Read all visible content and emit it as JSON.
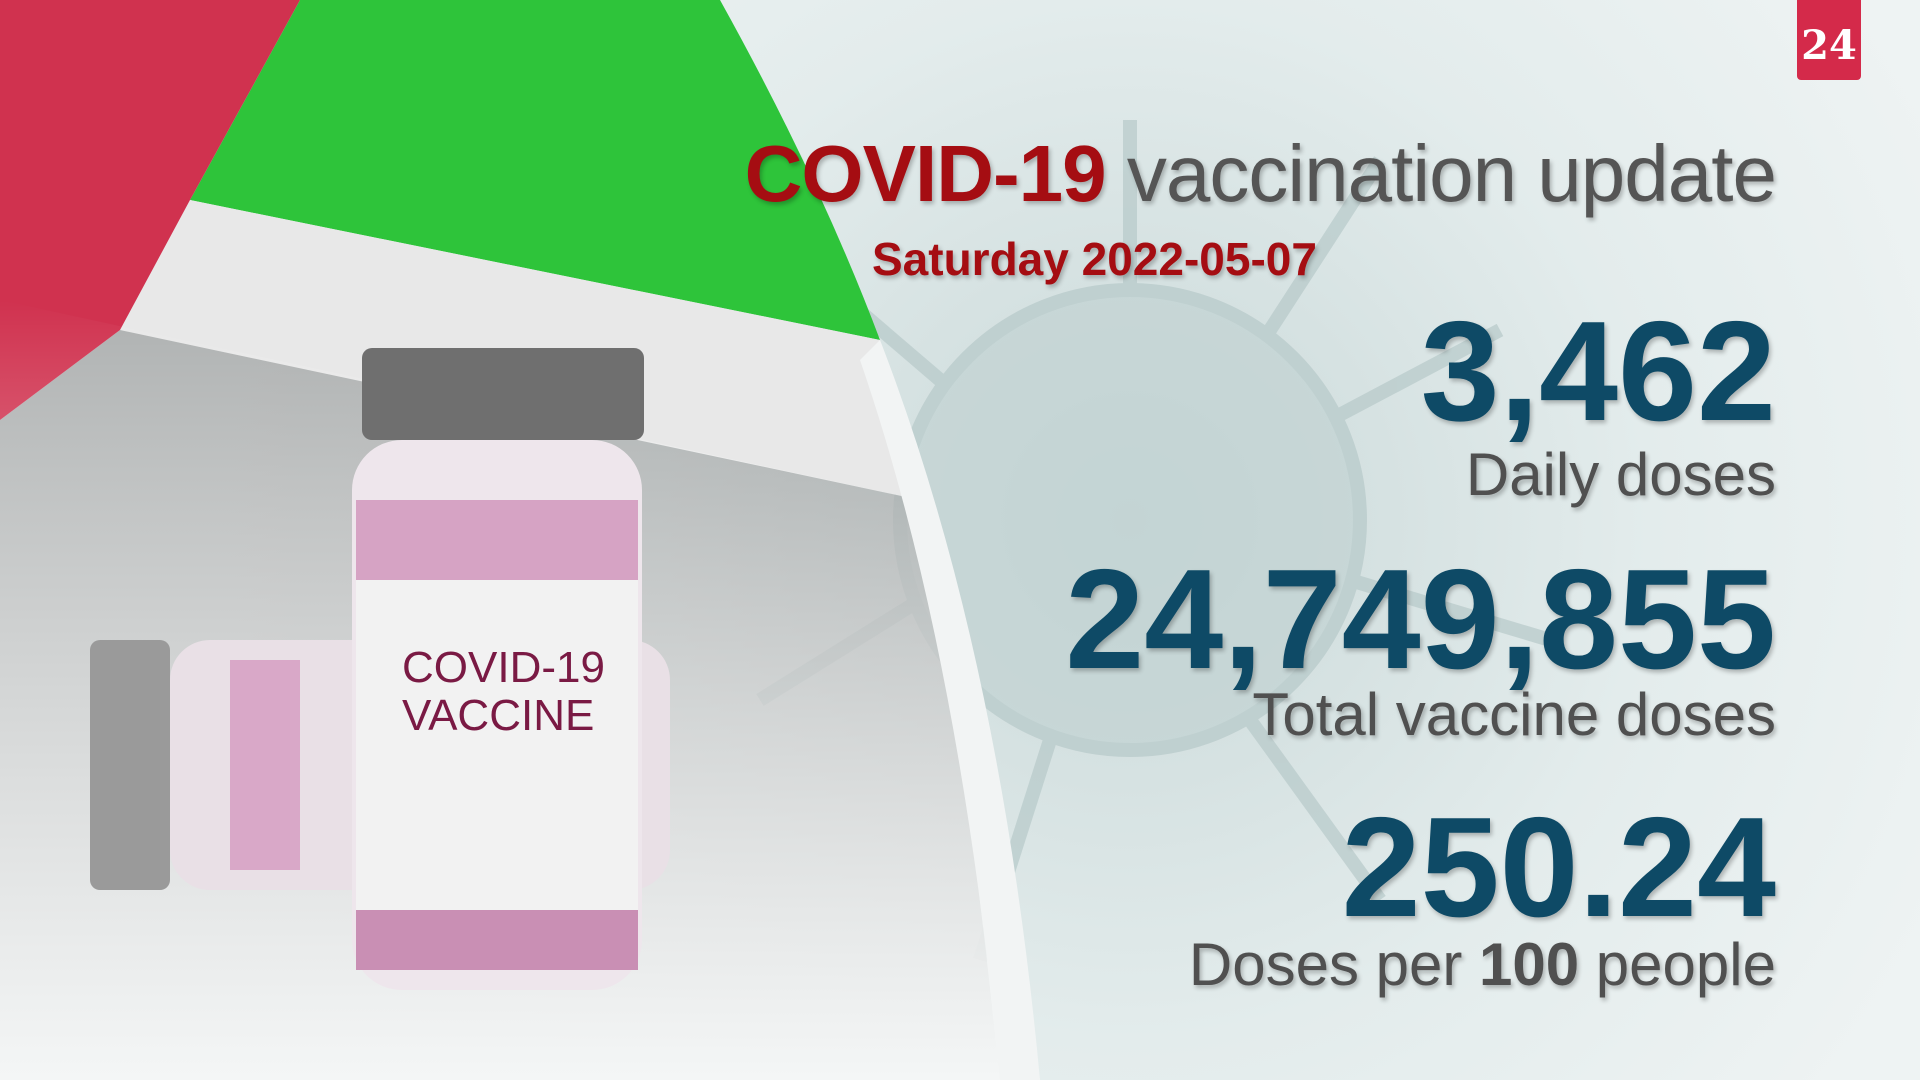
{
  "logo": {
    "text": "24",
    "color": "#d42a4a"
  },
  "title": {
    "highlight": "COVID-19",
    "rest": "vaccination update"
  },
  "date": "Saturday 2022-05-07",
  "stats": [
    {
      "value": "3,462",
      "label": "Daily doses"
    },
    {
      "value": "24,749,855",
      "label": "Total vaccine doses"
    },
    {
      "value": "250.24",
      "label_pre": "Doses per ",
      "label_num": "100",
      "label_post": " people"
    }
  ],
  "vial_label": {
    "line1": "COVID-19",
    "line2": "VACCINE"
  },
  "colors": {
    "accent_red": "#a50d12",
    "number_blue": "#0e4a66",
    "flag_red": "#d0324f",
    "flag_green": "#2ec43a"
  }
}
